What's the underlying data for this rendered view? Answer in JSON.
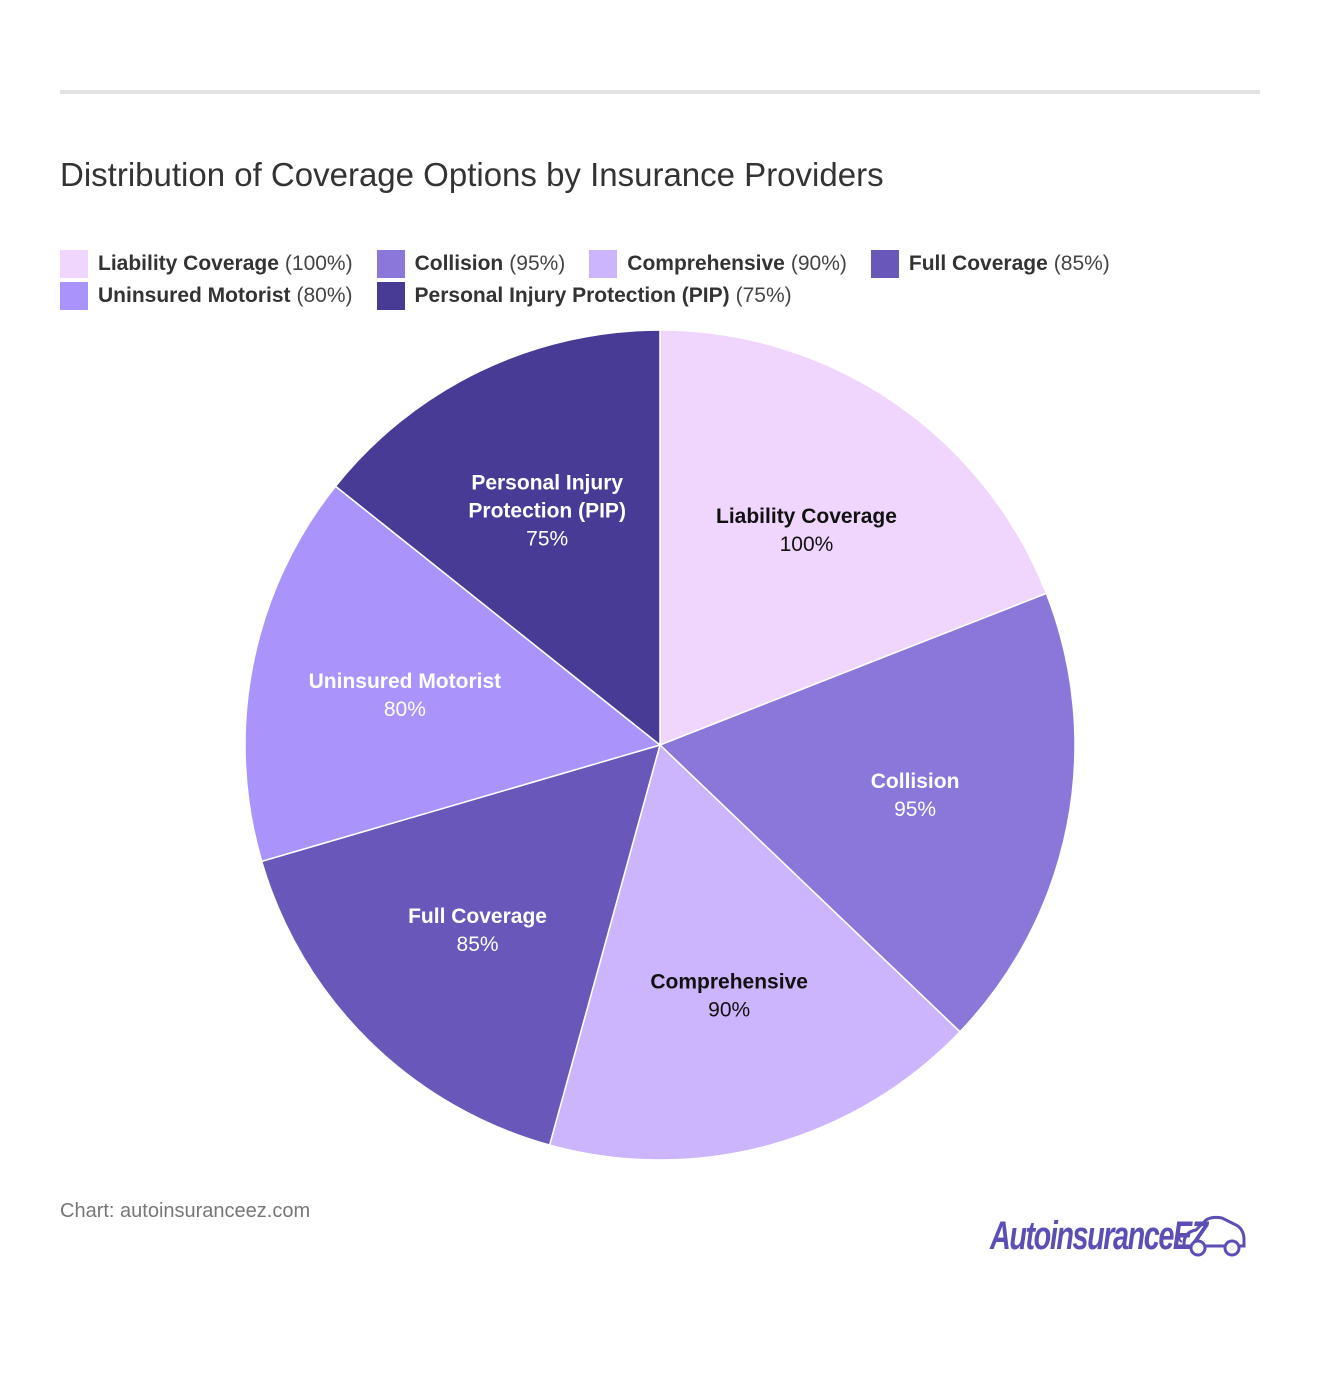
{
  "header": {
    "title": "Distribution of Coverage Options by Insurance Providers"
  },
  "legend": [
    {
      "name": "Liability Coverage",
      "pct": "(100%)",
      "color": "#f0d6fc"
    },
    {
      "name": "Collision",
      "pct": "(95%)",
      "color": "#8a77d9"
    },
    {
      "name": "Comprehensive",
      "pct": "(90%)",
      "color": "#ccb5fc"
    },
    {
      "name": "Full Coverage",
      "pct": "(85%)",
      "color": "#6958b9"
    },
    {
      "name": "Uninsured Motorist",
      "pct": "(80%)",
      "color": "#aa94fb"
    },
    {
      "name": "Personal Injury Protection (PIP)",
      "pct": "(75%)",
      "color": "#473b96"
    }
  ],
  "chart_data": {
    "type": "pie",
    "title": "Distribution of Coverage Options by Insurance Providers",
    "categories": [
      "Liability Coverage",
      "Collision",
      "Comprehensive",
      "Full Coverage",
      "Uninsured Motorist",
      "Personal Injury Protection (PIP)"
    ],
    "values": [
      100,
      95,
      90,
      85,
      80,
      75
    ],
    "value_labels": [
      "100%",
      "95%",
      "90%",
      "85%",
      "80%",
      "75%"
    ],
    "slice_labels": [
      [
        "Liability Coverage"
      ],
      [
        "Collision"
      ],
      [
        "Comprehensive"
      ],
      [
        "Full Coverage"
      ],
      [
        "Uninsured Motorist"
      ],
      [
        "Personal Injury",
        "Protection (PIP)"
      ]
    ],
    "colors": [
      "#f0d6fc",
      "#8a77d9",
      "#ccb5fc",
      "#6958b9",
      "#aa94fb",
      "#473b96"
    ],
    "label_colors": [
      "#111111",
      "#ffffff",
      "#111111",
      "#ffffff",
      "#ffffff",
      "#ffffff"
    ],
    "legend_position": "top-left",
    "start_angle": "12 o'clock",
    "direction": "clockwise"
  },
  "footer": {
    "source": "Chart: autoinsuranceez.com",
    "logo_text": "AutoinsuranceEZ"
  }
}
